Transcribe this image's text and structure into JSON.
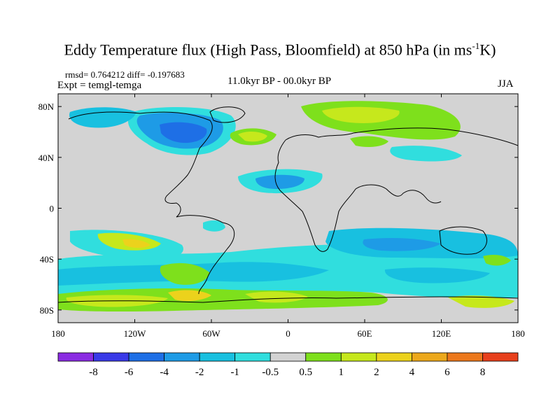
{
  "title": {
    "main": "Eddy Temperature flux (High Pass, Bloomfield) at 850 hPa (in ms",
    "sup": "-1",
    "tail": "K)"
  },
  "stats": "rmsd= 0.764212 diff= -0.197683",
  "experiment": "Expt = temgl-temga",
  "period": "11.0kyr BP - 00.0kyr BP",
  "season": "JJA",
  "map": {
    "lat_ticks": [
      {
        "value": 80,
        "label": "80N"
      },
      {
        "value": 40,
        "label": "40N"
      },
      {
        "value": 0,
        "label": "0"
      },
      {
        "value": -40,
        "label": "40S"
      },
      {
        "value": -80,
        "label": "80S"
      }
    ],
    "lon_ticks": [
      {
        "value": -180,
        "label": "180"
      },
      {
        "value": -120,
        "label": "120W"
      },
      {
        "value": -60,
        "label": "60W"
      },
      {
        "value": 0,
        "label": "0"
      },
      {
        "value": 60,
        "label": "60E"
      },
      {
        "value": 120,
        "label": "120E"
      },
      {
        "value": 180,
        "label": "180"
      }
    ],
    "background_color": "#d3d3d3"
  },
  "colorbar": {
    "colors": [
      "#8a2be2",
      "#3a3ae8",
      "#1e6fe6",
      "#1e9be6",
      "#18c0e0",
      "#30dede",
      "#d3d3d3",
      "#7ee01c",
      "#c6e81c",
      "#ecd21c",
      "#eca81c",
      "#ec781c",
      "#e8401c"
    ],
    "labels": [
      "-8",
      "-6",
      "-4",
      "-2",
      "-1",
      "-0.5",
      "0.5",
      "1",
      "2",
      "4",
      "6",
      "8"
    ]
  }
}
